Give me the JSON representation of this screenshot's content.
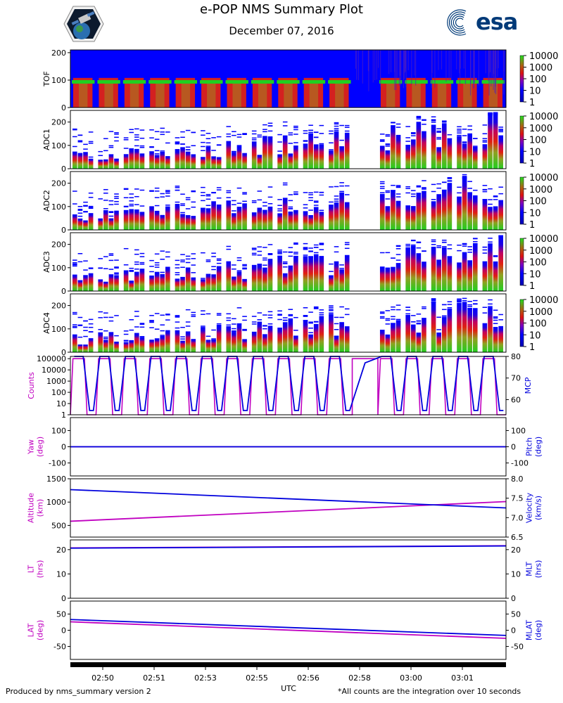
{
  "header": {
    "title": "e-POP NMS Summary Plot",
    "date": "December 07, 2016",
    "esa_logo_text": "esa"
  },
  "footer": {
    "left": "Produced by nms_summary version 2",
    "right": "*All counts are the integration over 10 seconds"
  },
  "colors": {
    "magenta": "#c000c0",
    "blue": "#0000dd",
    "spec_bg": "#0000ff",
    "spec_green": "#20d020",
    "spec_red": "#e01010"
  },
  "chart_data": [
    {
      "type": "heatmap",
      "name": "TOF",
      "ylabel": "TOF",
      "ylim": [
        0,
        210
      ],
      "yticks": [
        "0",
        "100",
        "200"
      ],
      "colorbar": {
        "scale": "log",
        "ticks": [
          "1",
          "10",
          "100",
          "1000",
          "10000"
        ]
      },
      "description_values": "count rate spectrogram vs time-of-flight channel"
    },
    {
      "type": "heatmap",
      "name": "ADC1",
      "ylabel": "ADC1",
      "ylim": [
        0,
        250
      ],
      "yticks": [
        "0",
        "100",
        "200"
      ],
      "colorbar": {
        "scale": "log",
        "ticks": [
          "1",
          "10",
          "100",
          "1000",
          "10000"
        ]
      }
    },
    {
      "type": "heatmap",
      "name": "ADC2",
      "ylabel": "ADC2",
      "ylim": [
        0,
        250
      ],
      "yticks": [
        "0",
        "100",
        "200"
      ],
      "colorbar": {
        "scale": "log",
        "ticks": [
          "1",
          "10",
          "100",
          "1000",
          "10000"
        ]
      }
    },
    {
      "type": "heatmap",
      "name": "ADC3",
      "ylabel": "ADC3",
      "ylim": [
        0,
        250
      ],
      "yticks": [
        "0",
        "100",
        "200"
      ],
      "colorbar": {
        "scale": "log",
        "ticks": [
          "1",
          "10",
          "100",
          "1000",
          "10000"
        ]
      }
    },
    {
      "type": "heatmap",
      "name": "ADC4",
      "ylabel": "ADC4",
      "ylim": [
        0,
        250
      ],
      "yticks": [
        "0",
        "100",
        "200"
      ],
      "colorbar": {
        "scale": "log",
        "ticks": [
          "1",
          "10",
          "100",
          "1000",
          "10000"
        ]
      }
    },
    {
      "type": "line",
      "name": "counts-mcp",
      "ylabel_left": "Counts",
      "ylabel_right": "MCP",
      "left_scale": "log",
      "left_ticks": [
        "1",
        "10",
        "100",
        "1000",
        "10000",
        "100000"
      ],
      "right_ticks": [
        "60",
        "70",
        "80"
      ],
      "right_ylim": [
        53,
        80
      ],
      "cycles": 17,
      "series": [
        {
          "name": "Counts",
          "color": "magenta",
          "axis": "left",
          "high": 100000,
          "low": 1
        },
        {
          "name": "MCP",
          "color": "blue",
          "axis": "right",
          "high": 80,
          "low": 55
        }
      ]
    },
    {
      "type": "line",
      "name": "yaw-pitch",
      "ylabel_left": "Yaw\n(deg)",
      "ylabel_right": "Pitch\n(deg)",
      "ylim": [
        -180,
        180
      ],
      "left_ticks": [
        "-100",
        "0",
        "100"
      ],
      "right_ticks": [
        "-100",
        "0",
        "100"
      ],
      "series": [
        {
          "name": "Yaw",
          "color": "magenta",
          "start": 0,
          "end": 0
        },
        {
          "name": "Pitch",
          "color": "blue",
          "start": 0,
          "end": 0
        }
      ]
    },
    {
      "type": "line",
      "name": "altitude-velocity",
      "ylabel_left": "Altitude\n(km)",
      "ylabel_right": "Velocity\n(km/s)",
      "left_ylim": [
        250,
        1500
      ],
      "right_ylim": [
        6.5,
        8.0
      ],
      "left_ticks": [
        "500",
        "1000",
        "1500"
      ],
      "right_ticks": [
        "6.5",
        "7.0",
        "7.5",
        "8.0"
      ],
      "series": [
        {
          "name": "Altitude",
          "color": "magenta",
          "axis": "left",
          "start": 590,
          "end": 1010
        },
        {
          "name": "Velocity",
          "color": "blue",
          "axis": "right",
          "start": 7.72,
          "end": 7.25
        }
      ]
    },
    {
      "type": "line",
      "name": "lt-mlt",
      "ylabel_left": "LT\n(hrs)",
      "ylabel_right": "MLT\n(hrs)",
      "ylim": [
        0,
        24
      ],
      "left_ticks": [
        "0",
        "10",
        "20"
      ],
      "right_ticks": [
        "0",
        "10",
        "20"
      ],
      "series": [
        {
          "name": "LT",
          "color": "magenta",
          "start": 20.7,
          "end": 21.6
        },
        {
          "name": "MLT",
          "color": "blue",
          "start": 20.6,
          "end": 21.5
        }
      ]
    },
    {
      "type": "line",
      "name": "lat-mlat",
      "ylabel_left": "LAT\n(deg)",
      "ylabel_right": "MLAT\n(deg)",
      "ylim": [
        -90,
        90
      ],
      "left_ticks": [
        "-50",
        "0",
        "50"
      ],
      "right_ticks": [
        "-50",
        "0",
        "50"
      ],
      "series": [
        {
          "name": "LAT",
          "color": "magenta",
          "start": 26,
          "end": -25
        },
        {
          "name": "MLAT",
          "color": "blue",
          "start": 33,
          "end": -16
        }
      ]
    }
  ],
  "time_axis": {
    "label": "UTC",
    "ticks": [
      "02:50",
      "02:51",
      "02:53",
      "02:55",
      "02:56",
      "02:58",
      "03:00",
      "03:01"
    ]
  }
}
